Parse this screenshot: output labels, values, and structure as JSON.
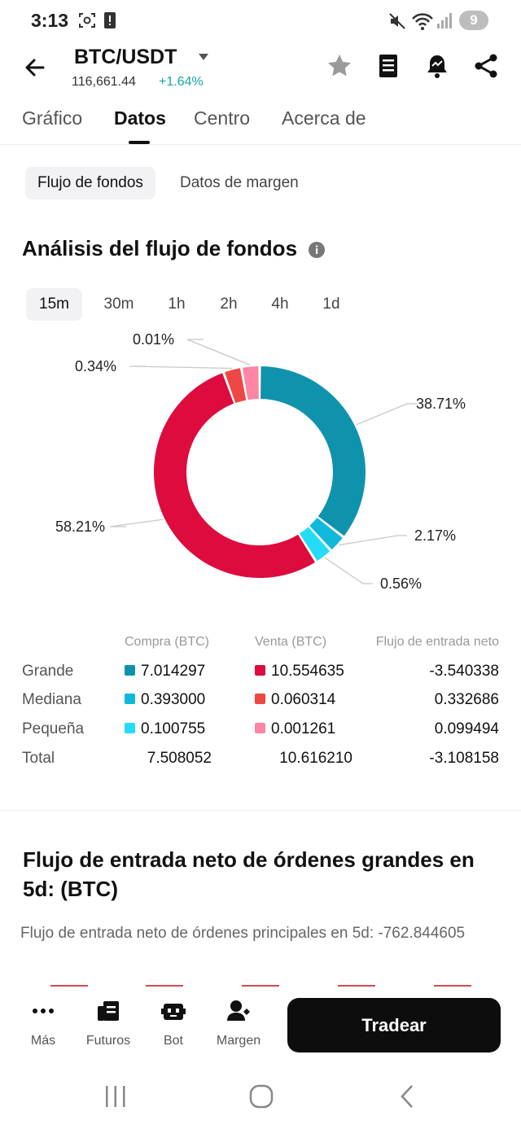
{
  "status_bar": {
    "time": "3:13",
    "battery": "9",
    "icons": [
      "screenshot-icon",
      "alert-icon",
      "mute-icon",
      "wifi-icon",
      "signal-icon"
    ]
  },
  "header": {
    "pair": "BTC/USDT",
    "price": "116,661.44",
    "change": "+1.64%",
    "change_color": "#15a6a0",
    "icons": [
      "back-arrow-icon",
      "star-icon",
      "notebook-icon",
      "price-alert-bell-icon",
      "share-icon"
    ]
  },
  "tabs": [
    {
      "label": "Gráfico"
    },
    {
      "label": "Datos",
      "active": true
    },
    {
      "label": "Centro"
    },
    {
      "label": "Acerca de"
    }
  ],
  "subtabs": [
    {
      "label": "Flujo de fondos",
      "active": true
    },
    {
      "label": "Datos de margen"
    }
  ],
  "fund_flow": {
    "title": "Análisis del flujo de fondos",
    "intervals": [
      {
        "label": "15m",
        "active": true
      },
      {
        "label": "30m"
      },
      {
        "label": "1h"
      },
      {
        "label": "2h"
      },
      {
        "label": "4h"
      },
      {
        "label": "1d"
      }
    ]
  },
  "chart_data": {
    "type": "pie",
    "donut": true,
    "labels_shown": [
      "38.71%",
      "2.17%",
      "0.56%",
      "58.21%",
      "0.34%",
      "0.01%"
    ],
    "slices": [
      {
        "name": "Compra Grande",
        "value": 7.014297,
        "label": "38.71%",
        "color": "#0f93ad"
      },
      {
        "name": "Compra Mediana",
        "value": 0.393,
        "label": "2.17%",
        "color": "#10b8d9"
      },
      {
        "name": "Compra Pequeña",
        "value": 0.100755,
        "label": "0.56%",
        "color": "#25dcf7"
      },
      {
        "name": "Venta Grande",
        "value": 10.554635,
        "label": "58.21%",
        "color": "#dd0b3e"
      },
      {
        "name": "Venta Mediana",
        "value": 0.060314,
        "label": "0.34%",
        "color": "#ee4744"
      },
      {
        "name": "Venta Pequeña",
        "value": 0.001261,
        "label": "0.01%",
        "color": "#fe85a6"
      }
    ]
  },
  "flow_table": {
    "headers": {
      "buy": "Compra (BTC)",
      "sell": "Venta (BTC)",
      "net": "Flujo de entrada neto"
    },
    "rows": [
      {
        "label": "Grande",
        "buy": "7.014297",
        "sell": "10.554635",
        "net": "-3.540338",
        "buy_color": "#0f93ad",
        "sell_color": "#dd0b3e"
      },
      {
        "label": "Mediana",
        "buy": "0.393000",
        "sell": "0.060314",
        "net": "0.332686",
        "buy_color": "#10b8d9",
        "sell_color": "#ee4744"
      },
      {
        "label": "Pequeña",
        "buy": "0.100755",
        "sell": "0.001261",
        "net": "0.099494",
        "buy_color": "#25dcf7",
        "sell_color": "#fe85a6"
      },
      {
        "label": "Total",
        "buy": "7.508052",
        "sell": "10.616210",
        "net": "-3.108158"
      }
    ]
  },
  "large_orders": {
    "title": "Flujo de entrada neto de órdenes grandes en 5d: (BTC)",
    "subtitle": "Flujo de entrada neto de órdenes principales en 5d: -762.844605"
  },
  "bottom_nav": {
    "items": [
      {
        "label": "Más",
        "icon": "more-dots-icon"
      },
      {
        "label": "Futuros",
        "icon": "futures-icon"
      },
      {
        "label": "Bot",
        "icon": "bot-icon"
      },
      {
        "label": "Margen",
        "icon": "margin-icon"
      }
    ],
    "trade_label": "Tradear"
  },
  "system_nav": {
    "icons": [
      "recents-icon",
      "home-icon",
      "back-icon"
    ]
  }
}
